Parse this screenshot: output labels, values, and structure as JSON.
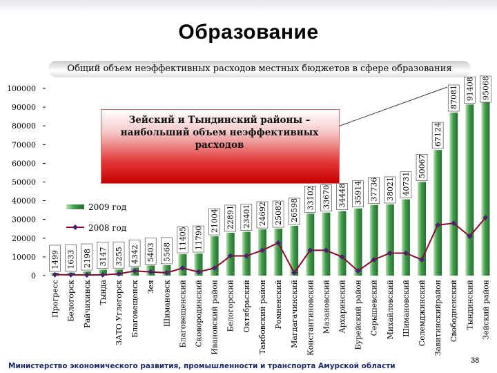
{
  "page": {
    "title": "Образование",
    "subtitle": "Общий объем неэффективных расходов местных бюджетов в сфере образования",
    "callout": "Зейский и Тындинский районы – наибольший объем неэффективных расходов",
    "footer": "Министерство экономического развития, промышленности и транспорта Амурской области",
    "page_number": "38"
  },
  "colors": {
    "bar": "#3f9c4a",
    "bar_light": "#b9e0b0",
    "line": "#8b0a2a",
    "marker": "#4a2070",
    "callout": "#e23a3a"
  },
  "chart_data": {
    "type": "bar",
    "title": "Общий объем неэффективных расходов местных бюджетов в сфере образования",
    "ylim": [
      0,
      100000
    ],
    "yticks": [
      0,
      10000,
      20000,
      30000,
      40000,
      50000,
      60000,
      70000,
      80000,
      90000,
      100000
    ],
    "categories": [
      "Прогресс",
      "Белогорск",
      "Райчихинск",
      "Тында",
      "ЗАТО Углегорск",
      "Благовещенск",
      "Зея",
      "Шимановск",
      "Благовещенский",
      "Сковородинский",
      "Ивановский район",
      "Белогорский",
      "Октябрьский",
      "Тамбовский район",
      "Ромненский",
      "Магдагачинский",
      "Константиновский",
      "Мазановский",
      "Архаринский",
      "Бурейский район",
      "Серышевский",
      "Михайловский",
      "Шимановский",
      "Селемджинский",
      "Завитинскийрайон",
      "Свободненский",
      "Тындинский",
      "Зейский район"
    ],
    "series": [
      {
        "name": "2009 год",
        "type": "bar",
        "values": [
          1499,
          1633,
          2198,
          3147,
          3255,
          4342,
          5403,
          5568,
          11405,
          11790,
          21004,
          22891,
          23401,
          24692,
          25082,
          26598,
          33102,
          33670,
          34448,
          35914,
          37736,
          38021,
          40731,
          50067,
          67124,
          87081,
          91408,
          95068
        ]
      },
      {
        "name": "2008 год",
        "type": "line",
        "values": [
          500,
          400,
          300,
          400,
          900,
          2500,
          2000,
          1500,
          4000,
          2000,
          4000,
          10500,
          10500,
          13500,
          17500,
          1500,
          13500,
          13500,
          10000,
          2500,
          8500,
          12000,
          12000,
          8500,
          27000,
          28000,
          21000,
          31000
        ]
      }
    ],
    "data_labels": [
      "1499",
      "1633",
      "2198",
      "3147",
      "3255",
      "4342",
      "5403",
      "5568",
      "11405",
      "11790",
      "21004",
      "22891",
      "23401",
      "24692",
      "25082",
      "26598",
      "33102",
      "33670",
      "34448",
      "35914",
      "37736",
      "38021",
      "40731",
      "50067",
      "67124",
      "87081",
      "91408",
      "95068"
    ],
    "legend": [
      "2009 год",
      "2008 год"
    ],
    "legend_position": "center-left"
  }
}
